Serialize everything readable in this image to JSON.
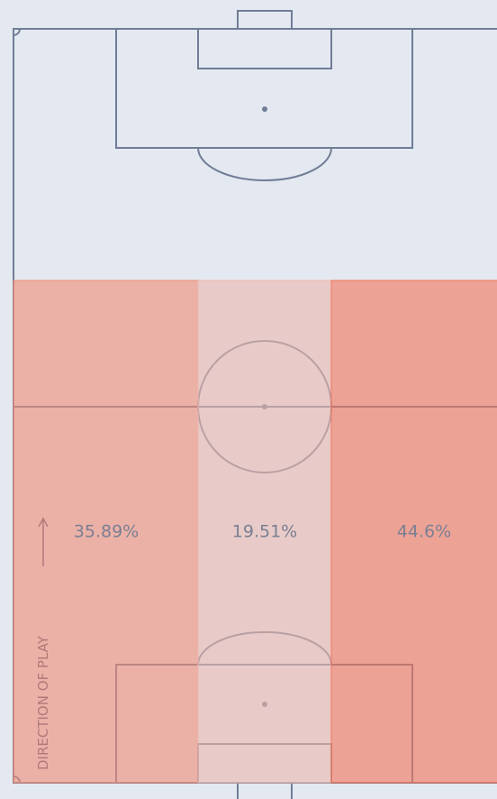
{
  "chart_data": {
    "type": "pitch-zones",
    "values": [
      35.89,
      19.51,
      44.6
    ],
    "value_labels": [
      "35.89%",
      "19.51%",
      "44.6%"
    ],
    "colors": [
      "#f08c76",
      "#ebb8ad",
      "#f2755a"
    ],
    "annotation": "DIRECTION OF PLAY"
  }
}
